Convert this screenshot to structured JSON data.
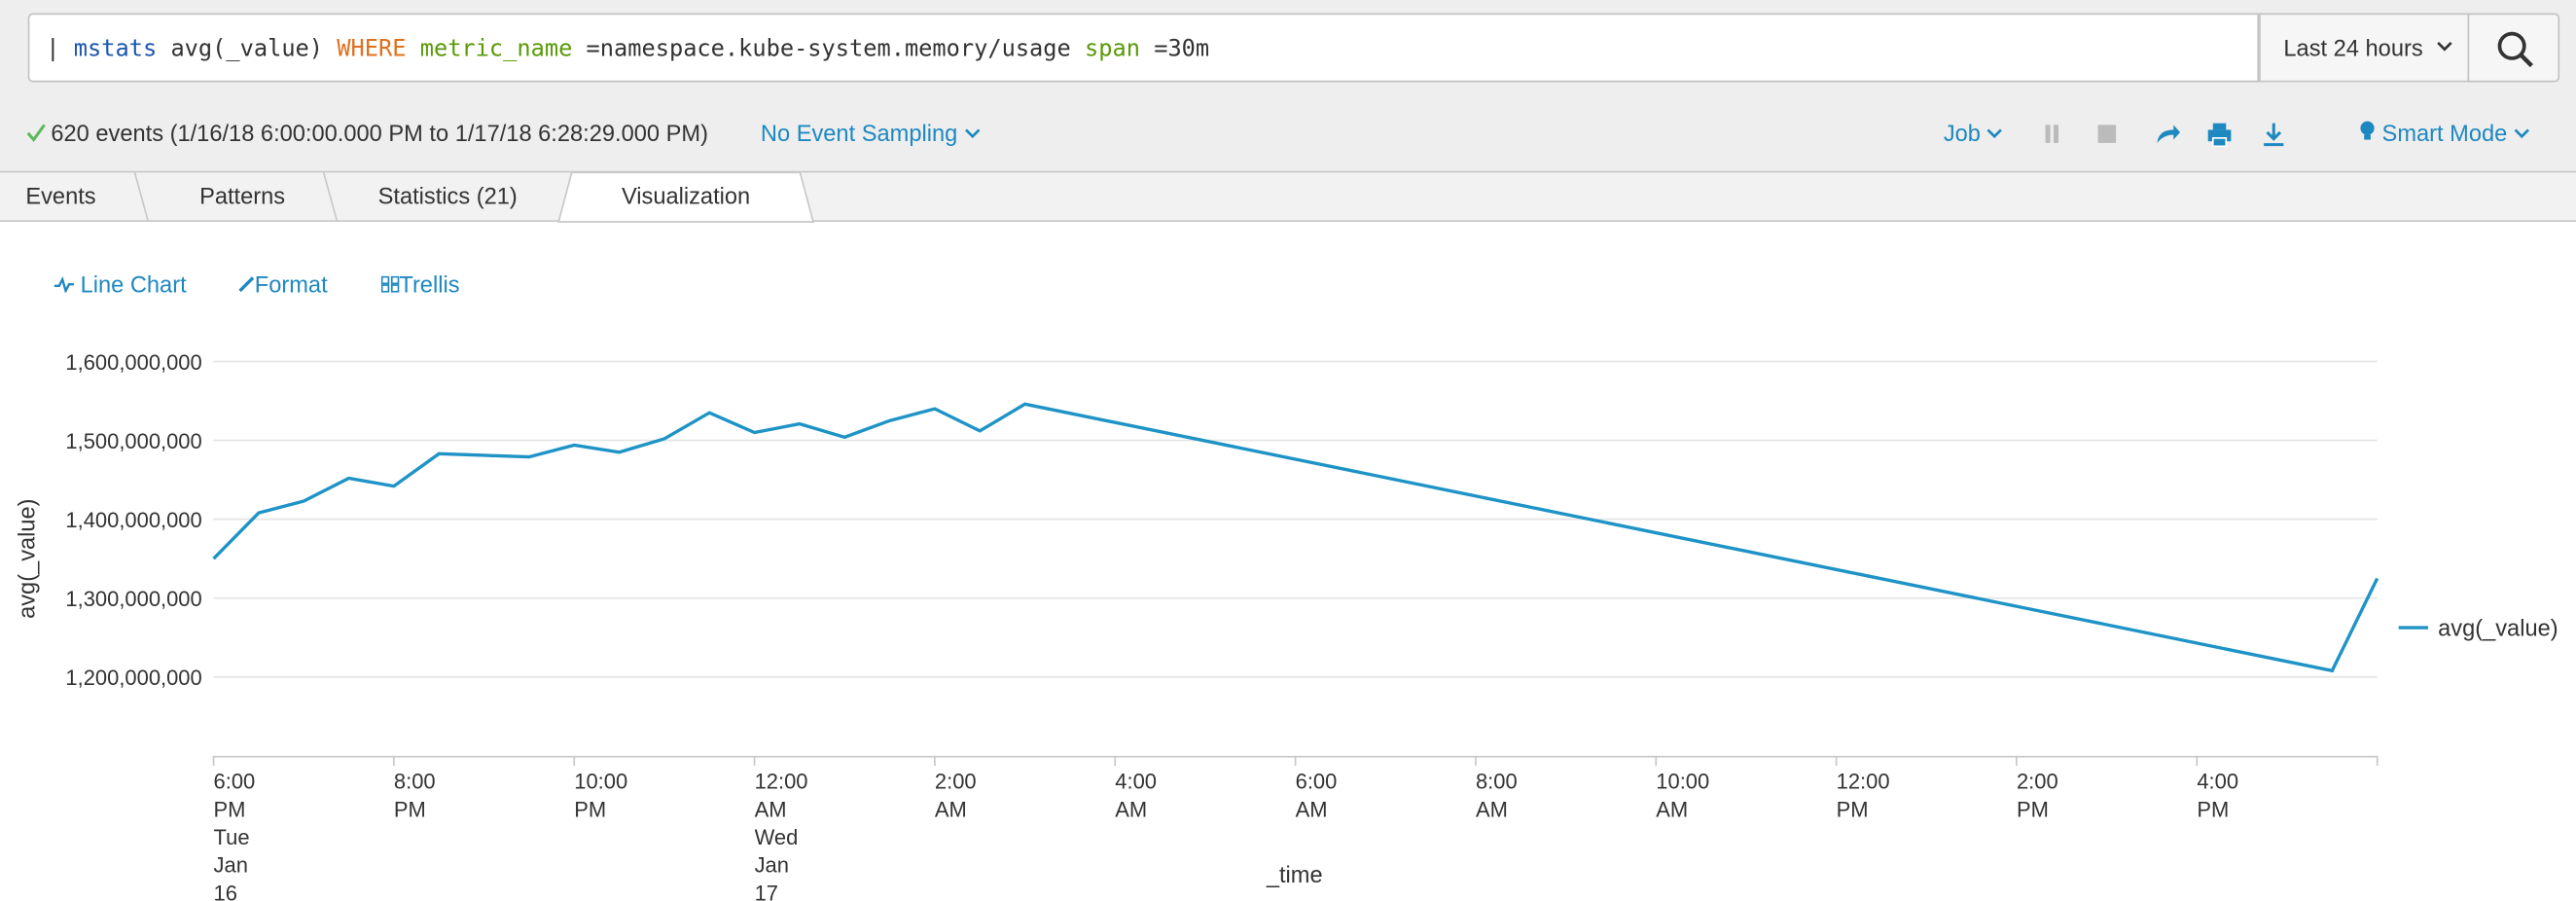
{
  "search": {
    "tokens": [
      {
        "text": "|",
        "color": "#333333"
      },
      {
        "text": "mstats",
        "color": "#1a56b0"
      },
      {
        "text": "avg(_value)",
        "color": "#333333"
      },
      {
        "text": "WHERE",
        "color": "#e0701e"
      },
      {
        "text": "metric_name",
        "color": "#5a9a08"
      },
      {
        "text": "=namespace.kube-system.memory/usage",
        "color": "#333333"
      },
      {
        "text": "span",
        "color": "#5a9a08"
      },
      {
        "text": "=30m",
        "color": "#333333"
      }
    ],
    "time_range": "Last 24 hours"
  },
  "status": {
    "events": "620 events (1/16/18 6:00:00.000 PM to 1/17/18 6:28:29.000 PM)",
    "sampling": "No Event Sampling",
    "job": "Job",
    "mode": "Smart Mode"
  },
  "tabs": {
    "items": [
      "Events",
      "Patterns",
      "Statistics (21)",
      "Visualization"
    ],
    "active": 3
  },
  "viz_menu": [
    "Line Chart",
    "Format",
    "Trellis"
  ],
  "chart_data": {
    "type": "line",
    "x_label": "_time",
    "y_label": "avg(_value)",
    "x": [
      "2018-01-16T18:00",
      "2018-01-16T18:30",
      "2018-01-16T19:00",
      "2018-01-16T19:30",
      "2018-01-16T20:00",
      "2018-01-16T20:30",
      "2018-01-16T21:00",
      "2018-01-16T21:30",
      "2018-01-16T22:00",
      "2018-01-16T22:30",
      "2018-01-16T23:00",
      "2018-01-16T23:30",
      "2018-01-17T00:00",
      "2018-01-17T00:30",
      "2018-01-17T01:00",
      "2018-01-17T01:30",
      "2018-01-17T02:00",
      "2018-01-17T02:30",
      "2018-01-17T03:00",
      "2018-01-17T17:30",
      "2018-01-17T18:00"
    ],
    "series": [
      {
        "name": "avg(_value)",
        "color": "#1e93c6",
        "values": [
          1350000000,
          1408000000,
          1423000000,
          1452000000,
          1442000000,
          1483000000,
          1481000000,
          1479000000,
          1494000000,
          1485000000,
          1502000000,
          1535000000,
          1510000000,
          1521000000,
          1504000000,
          1525000000,
          1540000000,
          1512000000,
          1546000000,
          1208000000,
          1325000000
        ]
      }
    ],
    "xlim": [
      "2018-01-16T18:00",
      "2018-01-17T18:00"
    ],
    "xticks": [
      {
        "value": "2018-01-16T18:00",
        "label": "6:00 PM\nTue Jan 16\n2018"
      },
      {
        "value": "2018-01-16T20:00",
        "label": "8:00 PM"
      },
      {
        "value": "2018-01-16T22:00",
        "label": "10:00 PM"
      },
      {
        "value": "2018-01-17T00:00",
        "label": "12:00 AM\nWed Jan 17"
      },
      {
        "value": "2018-01-17T02:00",
        "label": "2:00 AM"
      },
      {
        "value": "2018-01-17T04:00",
        "label": "4:00 AM"
      },
      {
        "value": "2018-01-17T06:00",
        "label": "6:00 AM"
      },
      {
        "value": "2018-01-17T08:00",
        "label": "8:00 AM"
      },
      {
        "value": "2018-01-17T10:00",
        "label": "10:00 AM"
      },
      {
        "value": "2018-01-17T12:00",
        "label": "12:00 PM"
      },
      {
        "value": "2018-01-17T14:00",
        "label": "2:00 PM"
      },
      {
        "value": "2018-01-17T16:00",
        "label": "4:00 PM"
      }
    ],
    "ylim": [
      1100000000,
      1600000000
    ],
    "yticks": [
      {
        "value": 1200000000,
        "label": "1,200,000,000"
      },
      {
        "value": 1300000000,
        "label": "1,300,000,000"
      },
      {
        "value": 1400000000,
        "label": "1,400,000,000"
      },
      {
        "value": 1500000000,
        "label": "1,500,000,000"
      },
      {
        "value": 1600000000,
        "label": "1,600,000,000"
      }
    ],
    "grid": true,
    "legend": "right"
  }
}
